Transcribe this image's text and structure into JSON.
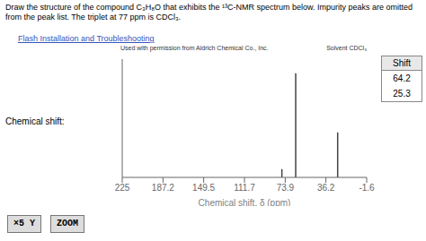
{
  "chart_data": {
    "type": "stem",
    "title": "Draw the structure of the compound C₃H₈O that exhibits the ¹³C-NMR spectrum below. Impurity peaks are omitted from the peak list. The triplet at 77 ppm is CDCl₃.",
    "xlabel": "Chemical shift, δ (ppm)",
    "x": [
      64.2,
      25.3,
      77.0
    ],
    "values": [
      0.88,
      0.38,
      0.07
    ],
    "color": "#444444",
    "xlim": [
      225.0,
      -1.6
    ],
    "xticks": [
      225.0,
      187.2,
      149.5,
      111.7,
      73.9,
      36.2,
      -1.6
    ],
    "ylim": [
      0,
      1.0
    ],
    "tick_labels": "x",
    "grid": false,
    "annotations": [
      "Flash Installation and Troubleshooting",
      "Used with permission from Aldrich Chemical Co., Inc.",
      "Solvent CDCl₃",
      "Chemical shift:",
      "×5 Y",
      "ZOOM"
    ],
    "table": {
      "header": "Shift",
      "rows": [
        "64.2",
        "25.3"
      ]
    }
  }
}
